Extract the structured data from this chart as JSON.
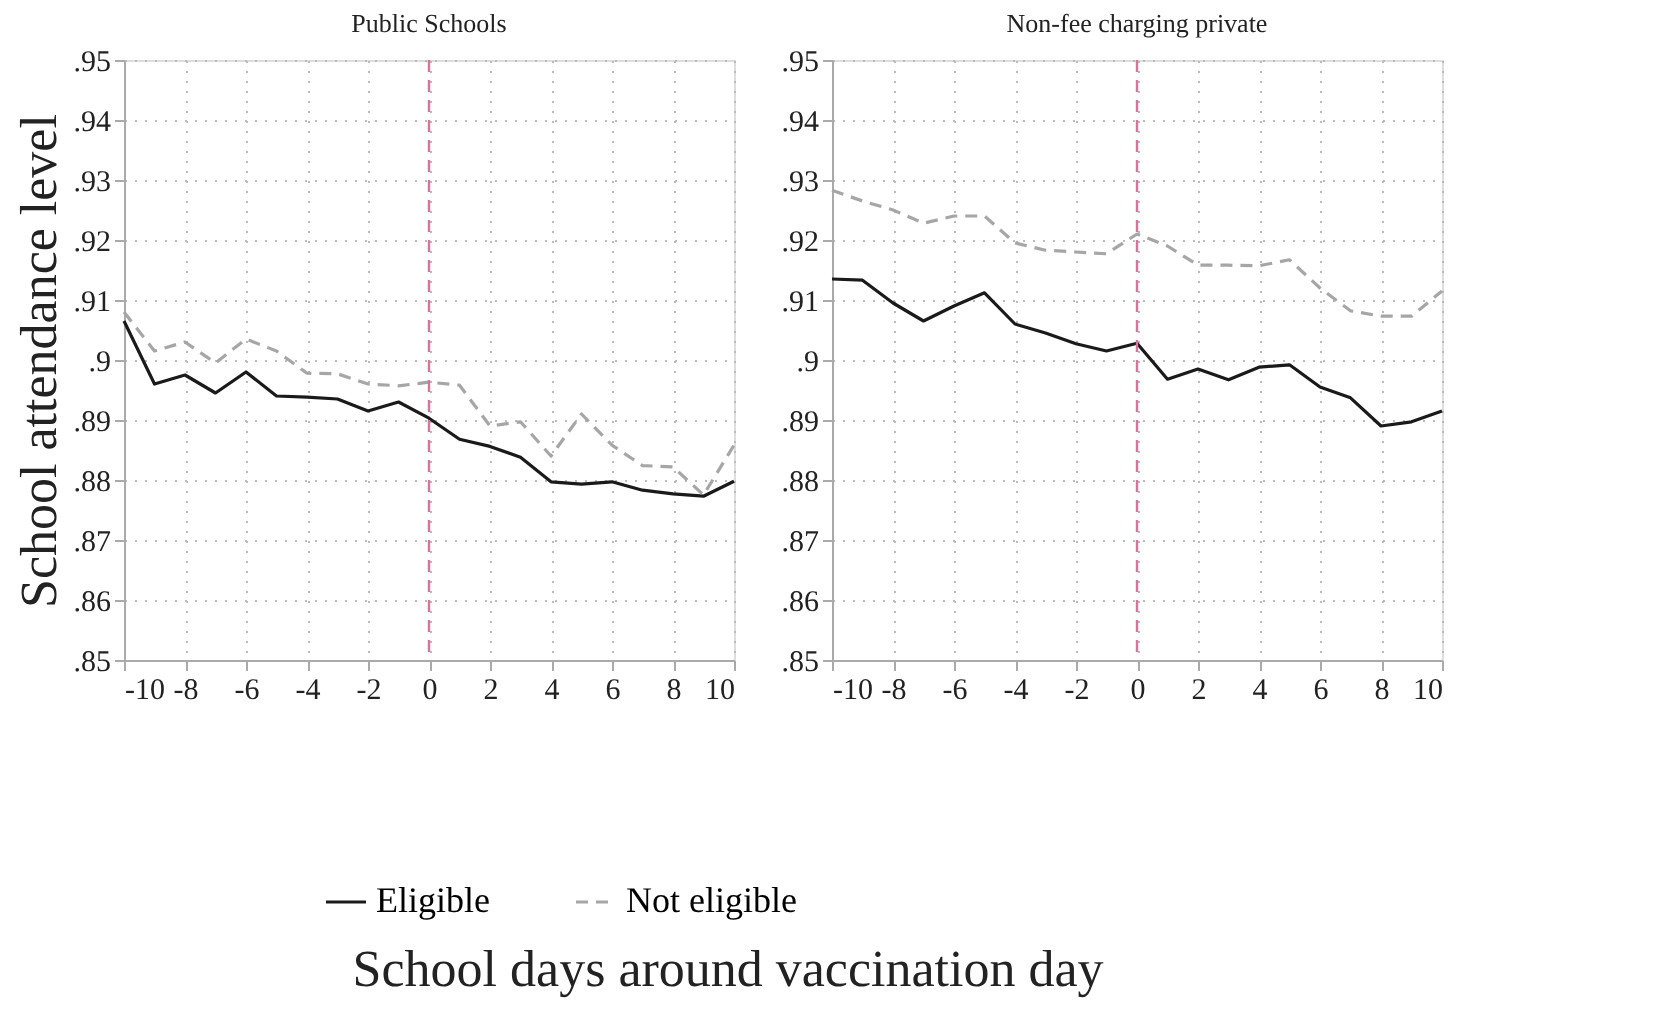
{
  "chart_data": [
    {
      "type": "line",
      "title": "Public Schools",
      "xlabel": "School days around vaccination day",
      "ylabel": "School attendance level",
      "x": [
        -10,
        -9,
        -8,
        -7,
        -6,
        -5,
        -4,
        -3,
        -2,
        -1,
        0,
        1,
        2,
        3,
        4,
        5,
        6,
        7,
        8,
        9,
        10
      ],
      "series": [
        {
          "name": "Eligible",
          "color": "#1a1a1a",
          "line_style": "solid",
          "values": [
            0.9065,
            0.896,
            0.8975,
            0.8945,
            0.898,
            0.894,
            0.8938,
            0.8935,
            0.8915,
            0.893,
            0.8903,
            0.8868,
            0.8856,
            0.8838,
            0.8797,
            0.8793,
            0.8797,
            0.8783,
            0.8777,
            0.8773,
            0.8798
          ]
        },
        {
          "name": "Not eligible",
          "color": "#a6a6a6",
          "line_style": "dashed",
          "values": [
            0.908,
            0.9015,
            0.903,
            0.8995,
            0.9035,
            0.9015,
            0.8978,
            0.8977,
            0.896,
            0.8957,
            0.8963,
            0.8958,
            0.889,
            0.8897,
            0.884,
            0.891,
            0.8858,
            0.8824,
            0.8822,
            0.8775,
            0.8858
          ]
        }
      ],
      "xlim": [
        -10,
        10
      ],
      "xticks": [
        -10,
        -8,
        -6,
        -4,
        -2,
        0,
        2,
        4,
        6,
        8,
        10
      ],
      "ylim": [
        0.85,
        0.95
      ],
      "yticks": [
        {
          "value": 0.85,
          "label": ".85"
        },
        {
          "value": 0.86,
          "label": ".86"
        },
        {
          "value": 0.87,
          "label": ".87"
        },
        {
          "value": 0.88,
          "label": ".88"
        },
        {
          "value": 0.89,
          "label": ".89"
        },
        {
          "value": 0.9,
          "label": ".9"
        },
        {
          "value": 0.91,
          "label": ".91"
        },
        {
          "value": 0.92,
          "label": ".92"
        },
        {
          "value": 0.93,
          "label": ".93"
        },
        {
          "value": 0.94,
          "label": ".94"
        },
        {
          "value": 0.95,
          "label": ".95"
        }
      ],
      "ref_lines": [
        {
          "axis": "x",
          "value": 0,
          "color": "#d9739b",
          "line_style": "dashed"
        }
      ],
      "grid": true,
      "legend": "bottom",
      "marker": "none"
    },
    {
      "type": "line",
      "title": "Non-fee charging private",
      "x": [
        -10,
        -9,
        -8,
        -7,
        -6,
        -5,
        -4,
        -3,
        -2,
        -1,
        0,
        1,
        2,
        3,
        4,
        5,
        6,
        7,
        8,
        9,
        10
      ],
      "series": [
        {
          "name": "Eligible",
          "color": "#1a1a1a",
          "line_style": "solid",
          "values": [
            0.9135,
            0.9133,
            0.9095,
            0.9065,
            0.909,
            0.9112,
            0.906,
            0.9045,
            0.9027,
            0.9015,
            0.9028,
            0.8968,
            0.8985,
            0.8967,
            0.8988,
            0.8992,
            0.8955,
            0.8937,
            0.889,
            0.8897,
            0.8915
          ]
        },
        {
          "name": "Not eligible",
          "color": "#a6a6a6",
          "line_style": "dashed",
          "values": [
            0.9283,
            0.9265,
            0.925,
            0.9228,
            0.924,
            0.924,
            0.9195,
            0.9183,
            0.918,
            0.9177,
            0.921,
            0.919,
            0.9158,
            0.9158,
            0.9157,
            0.9167,
            0.912,
            0.9082,
            0.9073,
            0.9073,
            0.9115
          ]
        }
      ],
      "xlim": [
        -10,
        10
      ],
      "xticks": [
        -10,
        -8,
        -6,
        -4,
        -2,
        0,
        2,
        4,
        6,
        8,
        10
      ],
      "ylim": [
        0.85,
        0.95
      ],
      "yticks": [
        {
          "value": 0.85,
          "label": ".85"
        },
        {
          "value": 0.86,
          "label": ".86"
        },
        {
          "value": 0.87,
          "label": ".87"
        },
        {
          "value": 0.88,
          "label": ".88"
        },
        {
          "value": 0.89,
          "label": ".89"
        },
        {
          "value": 0.9,
          "label": ".9"
        },
        {
          "value": 0.91,
          "label": ".91"
        },
        {
          "value": 0.92,
          "label": ".92"
        },
        {
          "value": 0.93,
          "label": ".93"
        },
        {
          "value": 0.94,
          "label": ".94"
        },
        {
          "value": 0.95,
          "label": ".95"
        }
      ],
      "ref_lines": [
        {
          "axis": "x",
          "value": 0,
          "color": "#d9739b",
          "line_style": "dashed"
        }
      ],
      "grid": true,
      "legend": "bottom",
      "marker": "none"
    }
  ]
}
